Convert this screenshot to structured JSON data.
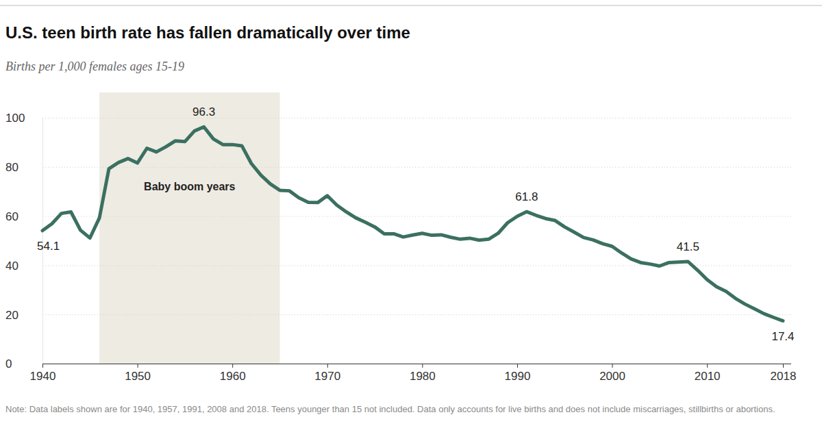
{
  "chart_data": {
    "type": "line",
    "title": "U.S. teen birth rate has fallen dramatically over time",
    "subtitle": "Births per 1,000 females ages 15-19",
    "note": "Note: Data labels shown are for 1940, 1957, 1991, 2008 and 2018. Teens younger than 15 not included. Data only accounts for live births and does not include miscarriages, stillbirths or abortions.",
    "x": [
      1940,
      1941,
      1942,
      1943,
      1944,
      1945,
      1946,
      1947,
      1948,
      1949,
      1950,
      1951,
      1952,
      1953,
      1954,
      1955,
      1956,
      1957,
      1958,
      1959,
      1960,
      1961,
      1962,
      1963,
      1964,
      1965,
      1966,
      1967,
      1968,
      1969,
      1970,
      1971,
      1972,
      1973,
      1974,
      1975,
      1976,
      1977,
      1978,
      1979,
      1980,
      1981,
      1982,
      1983,
      1984,
      1985,
      1986,
      1987,
      1988,
      1989,
      1990,
      1991,
      1992,
      1993,
      1994,
      1995,
      1996,
      1997,
      1998,
      1999,
      2000,
      2001,
      2002,
      2003,
      2004,
      2005,
      2006,
      2007,
      2008,
      2009,
      2010,
      2011,
      2012,
      2013,
      2014,
      2015,
      2016,
      2017,
      2018
    ],
    "values": [
      54.1,
      56.9,
      61.1,
      61.7,
      54.3,
      51.1,
      59.3,
      79.3,
      81.8,
      83.4,
      81.6,
      87.6,
      86.1,
      88.2,
      90.6,
      90.3,
      94.6,
      96.3,
      91.4,
      89.1,
      89.1,
      88.6,
      81.4,
      76.7,
      73.1,
      70.5,
      70.3,
      67.5,
      65.6,
      65.5,
      68.3,
      64.5,
      61.7,
      59.3,
      57.5,
      55.6,
      52.8,
      52.8,
      51.5,
      52.3,
      53.0,
      52.2,
      52.4,
      51.4,
      50.6,
      51.0,
      50.2,
      50.6,
      53.0,
      57.3,
      59.9,
      61.8,
      60.3,
      59.0,
      58.2,
      55.6,
      53.5,
      51.3,
      50.3,
      48.8,
      47.7,
      45.0,
      42.6,
      41.1,
      40.5,
      39.7,
      41.1,
      41.3,
      41.5,
      38.0,
      34.2,
      31.3,
      29.4,
      26.5,
      24.2,
      22.3,
      20.3,
      18.8,
      17.4
    ],
    "color": "#3b7061",
    "xlim": [
      1940,
      2018
    ],
    "xticks": [
      1940,
      1950,
      1960,
      1970,
      1980,
      1990,
      2000,
      2010,
      2018
    ],
    "ylim": [
      0,
      100
    ],
    "yticks": [
      0,
      20,
      40,
      60,
      80,
      100
    ],
    "grid": true,
    "shaded_region": {
      "x": [
        1946,
        1965
      ],
      "label": "Baby boom years"
    },
    "annotations": [
      {
        "x": 1940,
        "text": "54.1"
      },
      {
        "x": 1957,
        "text": "96.3"
      },
      {
        "x": 1991,
        "text": "61.8"
      },
      {
        "x": 2008,
        "text": "41.5"
      },
      {
        "x": 2018,
        "text": "17.4"
      }
    ]
  }
}
